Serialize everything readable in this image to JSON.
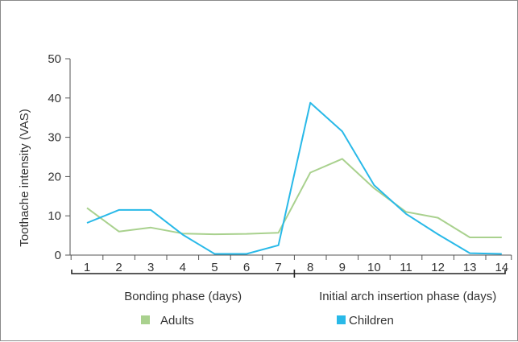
{
  "chart_data": {
    "type": "line",
    "x": [
      1,
      2,
      3,
      4,
      5,
      6,
      7,
      8,
      9,
      10,
      11,
      12,
      13,
      14
    ],
    "ylabel": "Toothache intensity (VAS)",
    "ylim": [
      0,
      50
    ],
    "yticks": [
      0,
      10,
      20,
      30,
      40,
      50
    ],
    "series": [
      {
        "name": "Adults",
        "color": "#a9d18e",
        "values": [
          12,
          6,
          7,
          5.5,
          5.3,
          5.4,
          5.7,
          21,
          24.5,
          17,
          11,
          9.5,
          4.5,
          4.5
        ]
      },
      {
        "name": "Children",
        "color": "#29b9e8",
        "values": [
          8.2,
          11.5,
          11.5,
          5.2,
          0.3,
          0.3,
          2.5,
          38.8,
          31.5,
          17.8,
          10.5,
          5.3,
          0.5,
          0.3
        ]
      }
    ],
    "phases": [
      {
        "label": "Bonding phase (days)",
        "from": 1,
        "to": 7
      },
      {
        "label": "Initial arch insertion phase (days)",
        "from": 8,
        "to": 14
      }
    ],
    "legend": "bottom",
    "grid": false
  }
}
